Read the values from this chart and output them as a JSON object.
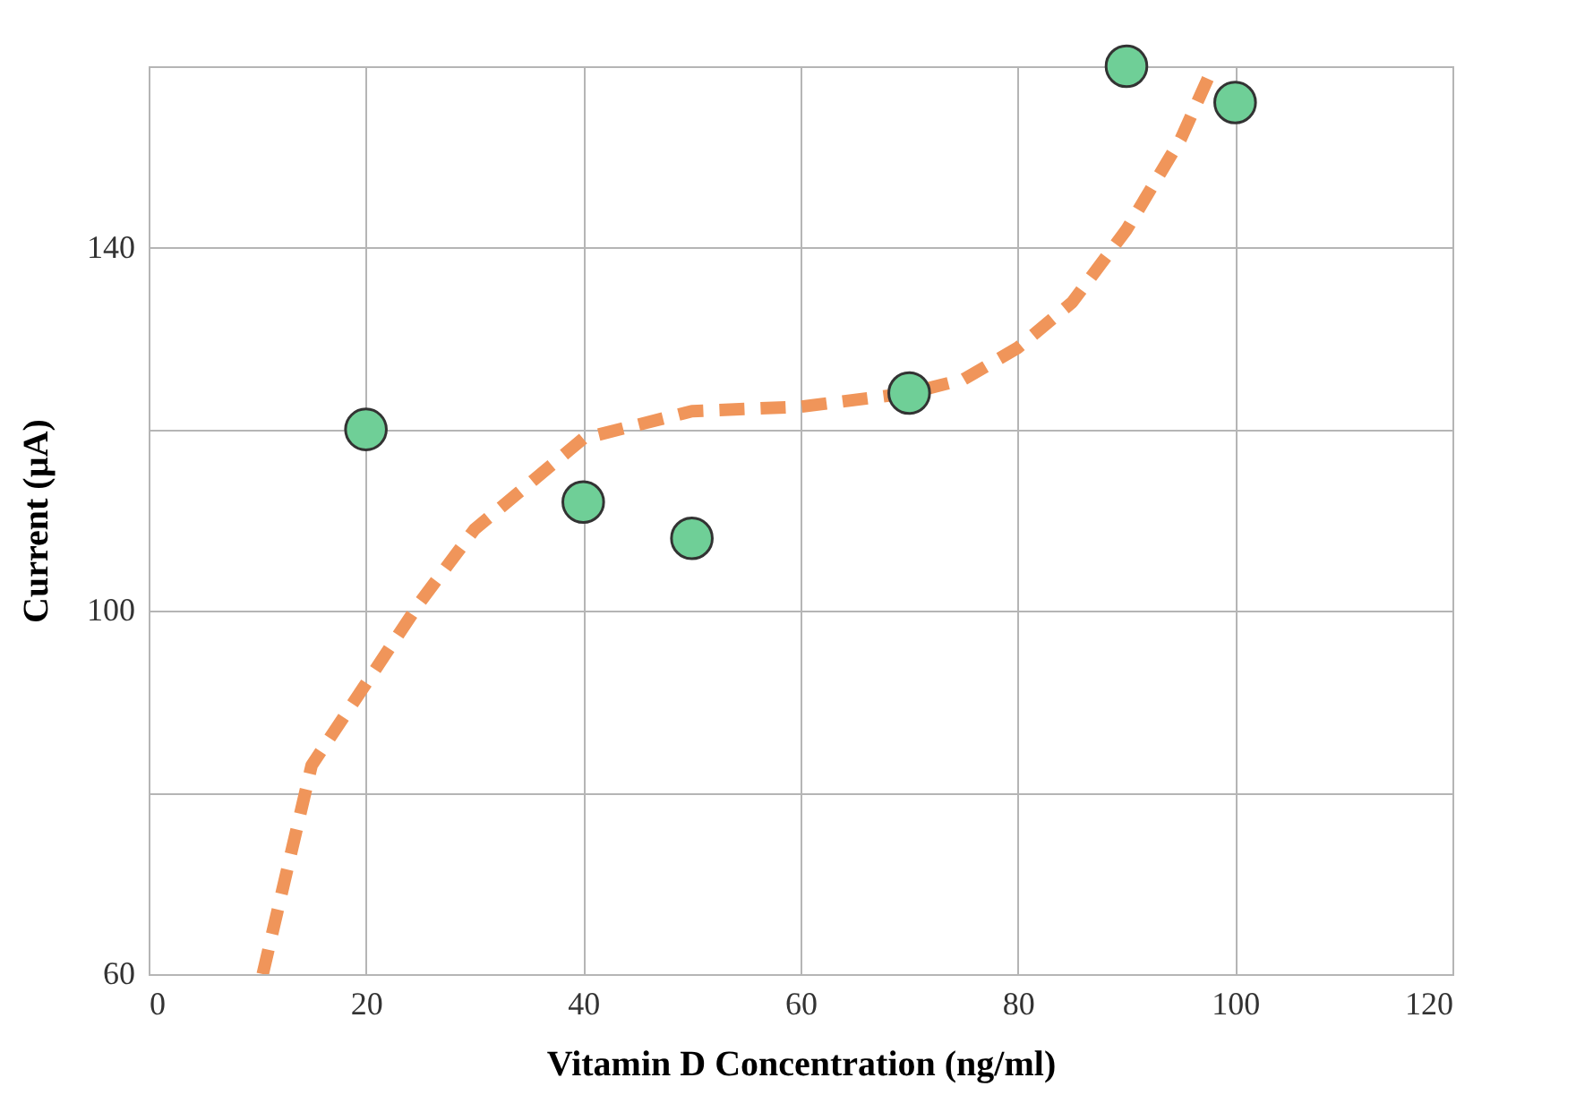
{
  "chart_data": {
    "type": "scatter",
    "xlabel": "Vitamin D Concentration (ng/ml)",
    "ylabel": "Current (µA)",
    "xlim": [
      0,
      120
    ],
    "xticks": [
      0,
      20,
      40,
      60,
      80,
      100,
      120
    ],
    "ylim": [
      60,
      160
    ],
    "yticks": [
      60,
      {
        "value": 80,
        "label": null
      },
      100,
      {
        "value": 120,
        "label": null
      },
      140,
      {
        "value": 160,
        "label": null
      }
    ],
    "grid": true,
    "marker": "circle",
    "series": [
      {
        "color": "#6fcf97",
        "x": [
          20,
          40,
          50,
          70,
          90,
          100
        ],
        "values": [
          120,
          112,
          108,
          124,
          160,
          156
        ]
      },
      {
        "type": "line",
        "color": "#f0955a",
        "line_style": "dashed",
        "marker": "none",
        "x": [
          10.5,
          15,
          20,
          25,
          30,
          40,
          50,
          60,
          70,
          75,
          80,
          85,
          90,
          95,
          98
        ],
        "values": [
          60,
          83,
          92,
          101,
          109,
          119,
          122,
          122.5,
          124,
          125.5,
          129,
          134,
          142,
          152,
          160
        ]
      }
    ]
  }
}
